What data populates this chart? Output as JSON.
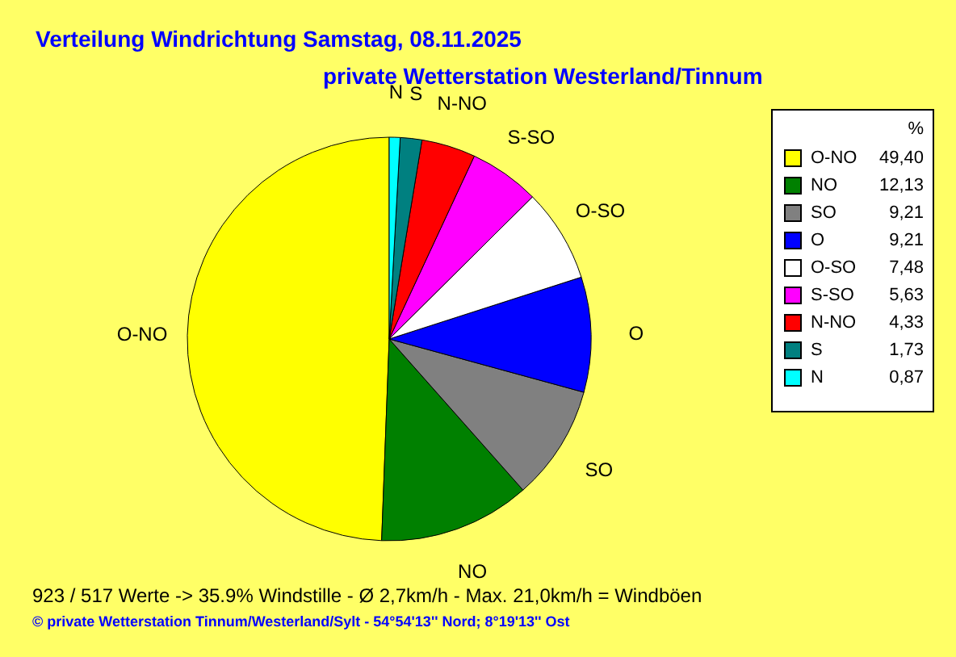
{
  "chart_data": {
    "type": "pie",
    "title": "Verteilung Windrichtung   Samstag, 08.11.2025",
    "subtitle": "private Wetterstation Westerland/Tinnum",
    "legend_title": "%",
    "categories": [
      "O-NO",
      "NO",
      "SO",
      "O",
      "O-SO",
      "S-SO",
      "N-NO",
      "S",
      "N"
    ],
    "values": [
      49.4,
      12.13,
      9.21,
      9.21,
      7.48,
      5.63,
      4.33,
      1.73,
      0.87
    ],
    "value_labels": [
      "49,40",
      "12,13",
      "9,21",
      "9,21",
      "7,48",
      "5,63",
      "4,33",
      "1,73",
      "0,87"
    ],
    "colors": [
      "#ffff00",
      "#008000",
      "#808080",
      "#0000ff",
      "#ffffff",
      "#ff00ff",
      "#ff0000",
      "#008080",
      "#00ffff"
    ],
    "legend": "top right",
    "annotations": [
      "923 / 517 Werte  -> 35.9% Windstille   -   Ø 2,7km/h  -  Max. 21,0km/h = Windböen",
      "© private Wetterstation Tinnum/Westerland/Sylt  -  54°54'13'' Nord; 8°19'13'' Ost"
    ]
  }
}
